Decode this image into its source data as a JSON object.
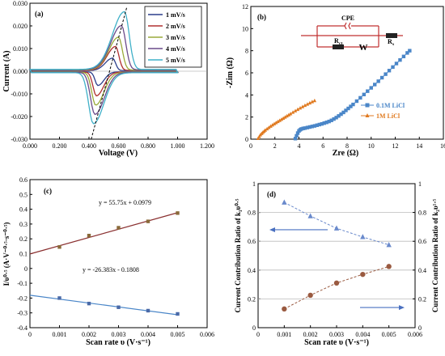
{
  "chart_data": [
    {
      "panel_label": "(a)",
      "type": "line",
      "xlabel": "Voltage (V)",
      "ylabel": "Current (A)",
      "xlim": [
        0,
        1.2
      ],
      "ylim": [
        -0.03,
        0.03
      ],
      "xticks": [
        "0.000",
        "0.200",
        "0.400",
        "0.600",
        "0.800",
        "1.000",
        "1.200"
      ],
      "yticks": [
        "-0.030",
        "-0.020",
        "-0.010",
        "0.000",
        "0.010",
        "0.020",
        "0.030"
      ],
      "grid": false,
      "legend_position": "top-right",
      "series": [
        {
          "name": "1 mV/s",
          "color": "#2b3f8c",
          "peak_anodic": [
            0.56,
            0.0055
          ],
          "peak_cathodic": [
            0.46,
            -0.006
          ]
        },
        {
          "name": "2 mV/s",
          "color": "#b03030",
          "peak_anodic": [
            0.58,
            0.0105
          ],
          "peak_cathodic": [
            0.45,
            -0.0105
          ]
        },
        {
          "name": "3 mV/s",
          "color": "#9aaa3a",
          "peak_anodic": [
            0.6,
            0.0145
          ],
          "peak_cathodic": [
            0.445,
            -0.0145
          ]
        },
        {
          "name": "4 mV/s",
          "color": "#6a4a8a",
          "peak_anodic": [
            0.62,
            0.0195
          ],
          "peak_cathodic": [
            0.44,
            -0.0185
          ]
        },
        {
          "name": "5 mV/s",
          "color": "#3fb0c8",
          "peak_anodic": [
            0.64,
            0.0255
          ],
          "peak_cathodic": [
            0.43,
            -0.0225
          ]
        }
      ]
    },
    {
      "panel_label": "(b)",
      "type": "scatter",
      "xlabel": "Zre (Ω)",
      "ylabel": "-Zim (Ω)",
      "xlim": [
        0,
        16
      ],
      "ylim": [
        0,
        12
      ],
      "xticks": [
        "0",
        "2",
        "4",
        "6",
        "8",
        "10",
        "12",
        "14",
        "16"
      ],
      "yticks": [
        "0",
        "2",
        "4",
        "6",
        "8",
        "10",
        "12"
      ],
      "legend_position": "right",
      "circuit_labels": {
        "cpe": "CPE",
        "rct": "R",
        "rct_sub": "ct",
        "rs": "R",
        "rs_sub": "s",
        "w": "W"
      },
      "series": [
        {
          "name": "0.1M LiCl",
          "color": "#4a86c8",
          "marker": "square",
          "x": [
            3.7,
            3.8,
            3.9,
            4.0,
            4.1,
            4.2,
            4.35,
            4.5,
            4.7,
            4.9,
            5.1,
            5.3,
            5.5,
            5.7,
            5.9,
            6.1,
            6.3,
            6.5,
            6.7,
            6.9,
            7.1,
            7.3,
            7.5,
            7.7,
            7.9,
            8.1,
            8.3,
            8.5,
            8.8,
            9.1,
            9.4,
            9.7,
            10.0,
            10.3,
            10.6,
            10.9,
            11.2,
            11.5,
            11.8,
            12.1,
            12.4,
            12.7,
            13.0,
            13.2
          ],
          "y": [
            0.05,
            0.3,
            0.55,
            0.75,
            0.85,
            0.92,
            0.97,
            1.0,
            1.05,
            1.1,
            1.15,
            1.2,
            1.26,
            1.32,
            1.38,
            1.45,
            1.52,
            1.6,
            1.7,
            1.82,
            1.95,
            2.1,
            2.26,
            2.42,
            2.6,
            2.78,
            2.96,
            3.14,
            3.44,
            3.74,
            4.04,
            4.34,
            4.64,
            4.94,
            5.24,
            5.56,
            5.88,
            6.2,
            6.52,
            6.84,
            7.16,
            7.48,
            7.8,
            8.0
          ]
        },
        {
          "name": "1M LiCl",
          "color": "#e07a20",
          "marker": "triangle",
          "x": [
            0.6,
            0.7,
            0.8,
            0.9,
            1.0,
            1.1,
            1.2,
            1.35,
            1.5,
            1.65,
            1.8,
            1.95,
            2.1,
            2.25,
            2.4,
            2.55,
            2.7,
            2.85,
            3.0,
            3.15,
            3.3,
            3.5,
            3.7,
            3.9,
            4.1,
            4.3,
            4.5,
            4.7,
            4.9,
            5.1,
            5.3
          ],
          "y": [
            0.05,
            0.22,
            0.38,
            0.5,
            0.6,
            0.7,
            0.8,
            0.92,
            1.04,
            1.16,
            1.27,
            1.38,
            1.48,
            1.58,
            1.68,
            1.78,
            1.88,
            1.98,
            2.08,
            2.18,
            2.28,
            2.42,
            2.55,
            2.68,
            2.8,
            2.92,
            3.04,
            3.15,
            3.26,
            3.37,
            3.47
          ]
        }
      ]
    },
    {
      "panel_label": "(c)",
      "type": "scatter",
      "xlabel": "Scan rate υ (V·s⁻¹)",
      "ylabel": "I/υ⁰·⁵ (A·V⁻⁰·⁵·s⁻⁰·⁵)",
      "xlim": [
        0,
        0.006
      ],
      "ylim": [
        -0.4,
        0.6
      ],
      "xticks": [
        "0",
        "0.001",
        "0.002",
        "0.003",
        "0.004",
        "0.005",
        "0.006"
      ],
      "yticks": [
        "-0.4",
        "-0.3",
        "-0.2",
        "-0.1",
        "0",
        "0.1",
        "0.2",
        "0.3",
        "0.4",
        "0.5",
        "0.6"
      ],
      "annotations": [
        "y = 55.75x + 0.0979",
        "y = -26.383x - 0.1808"
      ],
      "series": [
        {
          "x": [
            0.001,
            0.002,
            0.003,
            0.004,
            0.005
          ],
          "y": [
            0.145,
            0.222,
            0.275,
            0.318,
            0.374
          ],
          "color": "#8a6a3a",
          "fit": {
            "slope": 55.75,
            "intercept": 0.0979
          },
          "fit_color": "#8a3030"
        },
        {
          "x": [
            0.001,
            0.002,
            0.003,
            0.004,
            0.005
          ],
          "y": [
            -0.2,
            -0.237,
            -0.262,
            -0.285,
            -0.307
          ],
          "color": "#4a6aa8",
          "fit": {
            "slope": -26.383,
            "intercept": -0.1808
          },
          "fit_color": "#4a86c8"
        }
      ]
    },
    {
      "panel_label": "(d)",
      "type": "scatter",
      "xlabel": "Scan rate υ (V·s⁻¹)",
      "ylabel_left": "Current  Contribution  Ratio  of k₁υ⁰·⁵",
      "ylabel_right": "Current  Contribution  Ratio  of k₂υ¹·⁵",
      "xlim": [
        0,
        0.006
      ],
      "ylim": [
        0,
        1
      ],
      "xticks": [
        "0",
        "0.001",
        "0.002",
        "0.003",
        "0.004",
        "0.005",
        "0.006"
      ],
      "yticks": [
        "0",
        "0.2",
        "0.4",
        "0.6",
        "0.8",
        "1"
      ],
      "grid": true,
      "series": [
        {
          "x": [
            0.001,
            0.002,
            0.003,
            0.004,
            0.005
          ],
          "y": [
            0.87,
            0.775,
            0.69,
            0.63,
            0.575
          ],
          "color": "#6a8acc",
          "marker": "triangle"
        },
        {
          "x": [
            0.001,
            0.002,
            0.003,
            0.004,
            0.005
          ],
          "y": [
            0.13,
            0.225,
            0.31,
            0.37,
            0.425
          ],
          "color": "#9a5a40",
          "marker": "circle"
        }
      ]
    }
  ]
}
